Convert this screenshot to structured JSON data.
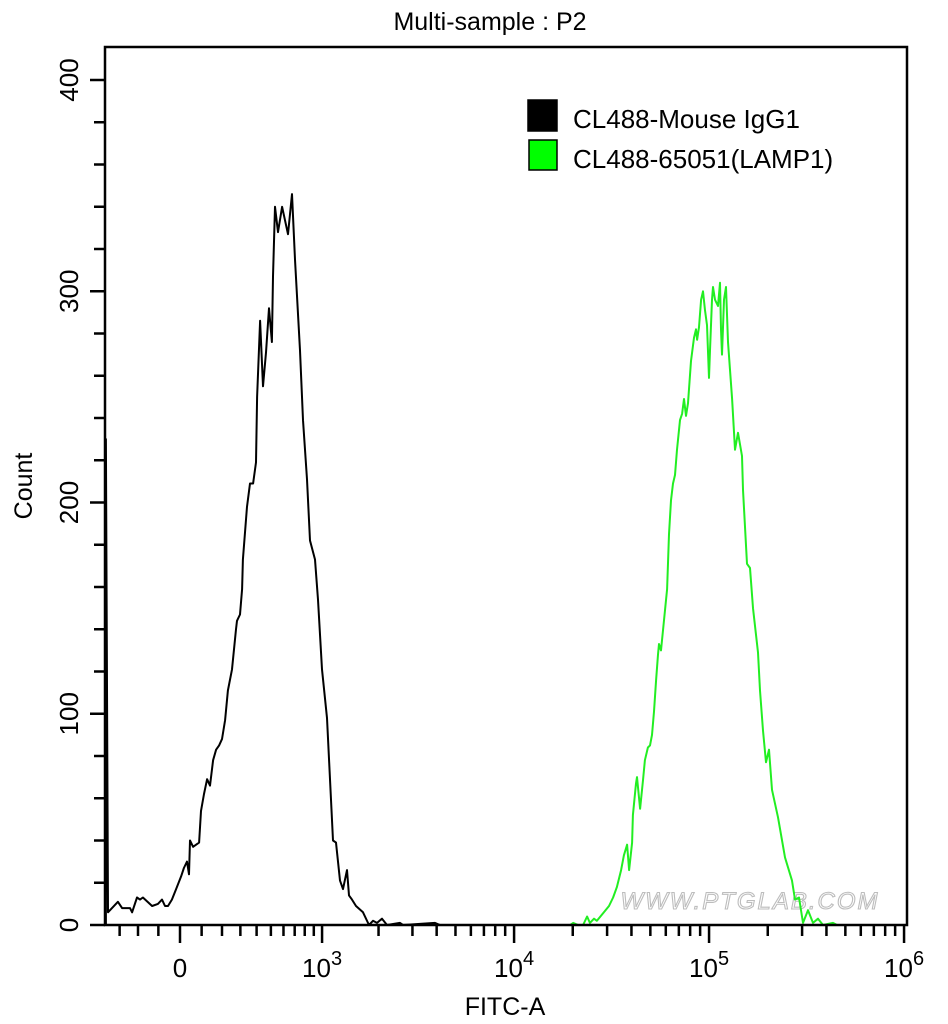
{
  "chart_data": {
    "type": "line",
    "title": "Multi-sample : P2",
    "xlabel": "FITC-A",
    "ylabel": "Count",
    "x_scale": "biexponential",
    "xlim": [
      -390,
      1040000
    ],
    "ylim": [
      0,
      415
    ],
    "grid": false,
    "legend_position": "top-right",
    "x_ticks": [
      {
        "value": 0,
        "base": "0",
        "exp": ""
      },
      {
        "value": 1000,
        "base": "10",
        "exp": "3"
      },
      {
        "value": 10000,
        "base": "10",
        "exp": "4"
      },
      {
        "value": 100000,
        "base": "10",
        "exp": "5"
      },
      {
        "value": 1000000,
        "base": "10",
        "exp": "6"
      }
    ],
    "y_ticks": [
      {
        "value": 0,
        "label": "0"
      },
      {
        "value": 100,
        "label": "100"
      },
      {
        "value": 200,
        "label": "200"
      },
      {
        "value": 300,
        "label": "300"
      },
      {
        "value": 400,
        "label": "400"
      }
    ],
    "series": [
      {
        "name": "CL488-Mouse IgG1",
        "color": "#000000",
        "x": [
          -384,
          -384,
          -370,
          -310,
          -286,
          -242,
          -231,
          -205,
          -190,
          -175,
          -130,
          -102,
          -83,
          -69,
          -55,
          -37,
          -18,
          5,
          18,
          32,
          41,
          46,
          60,
          88,
          97,
          111,
          126,
          140,
          155,
          170,
          185,
          200,
          216,
          231,
          253,
          275,
          281,
          298,
          310,
          315,
          339,
          358,
          377,
          396,
          403,
          423,
          443,
          464,
          486,
          508,
          516,
          531,
          555,
          588,
          639,
          675,
          703,
          752,
          782,
          824,
          857,
          914,
          950,
          999,
          1064,
          1147,
          1191,
          1251,
          1299,
          1364,
          1398,
          1450,
          1523,
          1658,
          1783,
          1871,
          1964,
          2085,
          2213,
          2587,
          2680,
          3923,
          4162,
          4970
        ],
        "y": [
          0,
          230,
          6,
          11,
          8,
          8,
          6,
          13,
          12,
          13,
          9,
          10,
          12,
          9,
          9,
          12,
          17,
          23,
          27,
          30,
          24,
          40,
          37,
          39,
          54,
          62,
          69,
          66,
          78,
          83,
          85,
          88,
          97,
          111,
          121,
          140,
          144,
          147,
          159,
          173,
          198,
          209,
          209,
          219,
          250,
          286,
          255,
          271,
          292,
          276,
          307,
          340,
          328,
          340,
          327,
          346,
          315,
          272,
          239,
          211,
          182,
          173,
          154,
          121,
          98,
          40,
          39,
          21,
          17,
          26,
          14,
          12,
          9,
          6,
          0,
          2,
          1,
          3,
          0,
          1,
          0,
          1,
          0,
          0
        ]
      },
      {
        "name": "CL488-65051(LAMP1)",
        "color": "#22ee22",
        "x": [
          16200,
          19400,
          20100,
          21300,
          22600,
          23700,
          24500,
          25700,
          26600,
          28900,
          30700,
          32200,
          33700,
          35400,
          36600,
          38000,
          38900,
          40300,
          40700,
          42200,
          42700,
          44300,
          45900,
          46900,
          48600,
          49800,
          51000,
          52200,
          53500,
          54700,
          55400,
          56700,
          58100,
          60900,
          62300,
          63800,
          65300,
          66900,
          68500,
          71000,
          72700,
          74400,
          76200,
          78000,
          80800,
          83700,
          85700,
          86800,
          88800,
          91000,
          93100,
          95300,
          97600,
          99900,
          101100,
          103500,
          104800,
          107300,
          111200,
          113800,
          115200,
          116500,
          119300,
          122200,
          125100,
          131200,
          135900,
          140800,
          147600,
          149300,
          156500,
          162200,
          168000,
          178200,
          182500,
          189100,
          195900,
          203000,
          210300,
          225700,
          245100,
          266300,
          275800,
          289300,
          303300,
          321700,
          341400,
          362000,
          384000,
          432000,
          453000
        ],
        "y": [
          0,
          0,
          1,
          0,
          0,
          4,
          1,
          3,
          2,
          6,
          9,
          13,
          18,
          26,
          33,
          38,
          26,
          39,
          52,
          67,
          70,
          55,
          69,
          78,
          84,
          85,
          90,
          101,
          116,
          128,
          133,
          130,
          140,
          159,
          185,
          201,
          209,
          213,
          225,
          239,
          242,
          249,
          241,
          247,
          267,
          278,
          282,
          277,
          283,
          296,
          300,
          291,
          284,
          259,
          272,
          296,
          302,
          296,
          293,
          304,
          282,
          270,
          296,
          302,
          276,
          249,
          225,
          233,
          222,
          206,
          171,
          169,
          150,
          129,
          111,
          92,
          77,
          83,
          64,
          51,
          32,
          21,
          12,
          13,
          1,
          7,
          1,
          3,
          0,
          1,
          0
        ]
      }
    ]
  },
  "watermark": "WWW.PTGLAB.COM"
}
